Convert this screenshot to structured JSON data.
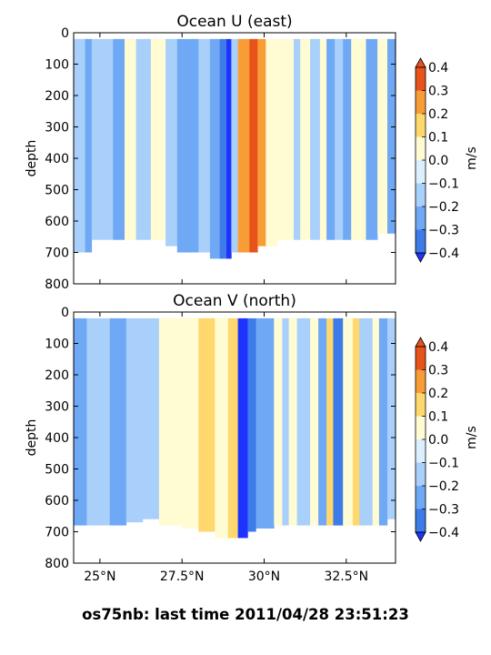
{
  "footer": "os75nb: last time 2011/04/28 23:51:23",
  "colors": {
    "-0.4": "#1f33ff",
    "-0.3": "#3d7be8",
    "-0.2": "#6fa8f5",
    "-0.1": "#a9d0fa",
    "0.0": "#dcefff",
    "0.1": "#fffbd2",
    "0.2": "#fed86c",
    "0.3": "#f89d35",
    "0.4": "#e8531b"
  },
  "chart_data": [
    {
      "type": "heatmap",
      "title": "Ocean U (east)",
      "ylabel": "depth",
      "ylim": [
        800,
        0
      ],
      "y_ticks": [
        "0",
        "100",
        "200",
        "300",
        "400",
        "500",
        "600",
        "700",
        "800"
      ],
      "x_ticks": [
        "25°N",
        "27.5°N",
        "30°N",
        "32.5°N"
      ],
      "xlim": [
        24.2,
        34.0
      ],
      "colorbar_label": "m/s",
      "colorbar_ticks": [
        "0.4",
        "0.3",
        "0.2",
        "0.1",
        "0.0",
        "−0.1",
        "−0.2",
        "−0.3",
        "−0.4"
      ],
      "levels": [
        -0.4,
        -0.3,
        -0.2,
        -0.1,
        0.0,
        0.1,
        0.2,
        0.3,
        0.4
      ],
      "data_top_depth": 20,
      "bands": [
        {
          "x": [
            24.2,
            24.55
          ],
          "v": -0.05,
          "bottom": 700
        },
        {
          "x": [
            24.55,
            24.75
          ],
          "v": -0.12,
          "bottom": 700
        },
        {
          "x": [
            24.75,
            25.4
          ],
          "v": -0.05,
          "bottom": 660
        },
        {
          "x": [
            25.4,
            25.75
          ],
          "v": -0.12,
          "bottom": 660
        },
        {
          "x": [
            25.75,
            26.1
          ],
          "v": 0.05,
          "bottom": 660
        },
        {
          "x": [
            26.1,
            26.55
          ],
          "v": -0.05,
          "bottom": 660
        },
        {
          "x": [
            26.55,
            27.0
          ],
          "v": 0.05,
          "bottom": 660
        },
        {
          "x": [
            27.0,
            27.35
          ],
          "v": -0.05,
          "bottom": 680
        },
        {
          "x": [
            27.35,
            28.0
          ],
          "v": -0.15,
          "bottom": 700
        },
        {
          "x": [
            28.0,
            28.35
          ],
          "v": -0.05,
          "bottom": 700
        },
        {
          "x": [
            28.35,
            28.65
          ],
          "v": -0.15,
          "bottom": 720
        },
        {
          "x": [
            28.65,
            28.85
          ],
          "v": -0.25,
          "bottom": 720
        },
        {
          "x": [
            28.85,
            29.0
          ],
          "v": -0.35,
          "bottom": 720
        },
        {
          "x": [
            29.0,
            29.2
          ],
          "v": -0.05,
          "bottom": 700
        },
        {
          "x": [
            29.2,
            29.55
          ],
          "v": 0.25,
          "bottom": 700
        },
        {
          "x": [
            29.55,
            29.8
          ],
          "v": 0.35,
          "bottom": 700
        },
        {
          "x": [
            29.8,
            30.05
          ],
          "v": 0.25,
          "bottom": 680
        },
        {
          "x": [
            30.05,
            30.4
          ],
          "v": 0.05,
          "bottom": 680
        },
        {
          "x": [
            30.4,
            30.9
          ],
          "v": 0.05,
          "bottom": 660
        },
        {
          "x": [
            30.9,
            31.1
          ],
          "v": -0.05,
          "bottom": 660
        },
        {
          "x": [
            31.1,
            31.4
          ],
          "v": 0.05,
          "bottom": 660
        },
        {
          "x": [
            31.4,
            31.7
          ],
          "v": -0.05,
          "bottom": 660
        },
        {
          "x": [
            31.7,
            31.9
          ],
          "v": 0.05,
          "bottom": 660
        },
        {
          "x": [
            31.9,
            32.15
          ],
          "v": -0.15,
          "bottom": 660
        },
        {
          "x": [
            32.15,
            32.4
          ],
          "v": -0.05,
          "bottom": 660
        },
        {
          "x": [
            32.4,
            32.65
          ],
          "v": -0.15,
          "bottom": 660
        },
        {
          "x": [
            32.65,
            33.1
          ],
          "v": 0.05,
          "bottom": 660
        },
        {
          "x": [
            33.1,
            33.45
          ],
          "v": -0.15,
          "bottom": 660
        },
        {
          "x": [
            33.45,
            33.75
          ],
          "v": 0.05,
          "bottom": 640
        },
        {
          "x": [
            33.75,
            34.0
          ],
          "v": -0.15,
          "bottom": 640
        }
      ]
    },
    {
      "type": "heatmap",
      "title": "Ocean V (north)",
      "ylabel": "depth",
      "ylim": [
        800,
        0
      ],
      "y_ticks": [
        "0",
        "100",
        "200",
        "300",
        "400",
        "500",
        "600",
        "700",
        "800"
      ],
      "x_ticks": [
        "25°N",
        "27.5°N",
        "30°N",
        "32.5°N"
      ],
      "xlim": [
        24.2,
        34.0
      ],
      "colorbar_label": "m/s",
      "colorbar_ticks": [
        "0.4",
        "0.3",
        "0.2",
        "0.1",
        "0.0",
        "−0.1",
        "−0.2",
        "−0.3",
        "−0.4"
      ],
      "levels": [
        -0.4,
        -0.3,
        -0.2,
        -0.1,
        0.0,
        0.1,
        0.2,
        0.3,
        0.4
      ],
      "data_top_depth": 20,
      "bands": [
        {
          "x": [
            24.2,
            24.6
          ],
          "v": -0.15,
          "bottom": 680
        },
        {
          "x": [
            24.6,
            25.3
          ],
          "v": -0.05,
          "bottom": 680
        },
        {
          "x": [
            25.3,
            25.8
          ],
          "v": -0.15,
          "bottom": 680
        },
        {
          "x": [
            25.8,
            26.3
          ],
          "v": -0.05,
          "bottom": 670
        },
        {
          "x": [
            26.3,
            26.8
          ],
          "v": -0.05,
          "bottom": 660
        },
        {
          "x": [
            26.8,
            27.5
          ],
          "v": 0.05,
          "bottom": 680
        },
        {
          "x": [
            27.5,
            28.0
          ],
          "v": 0.05,
          "bottom": 690
        },
        {
          "x": [
            28.0,
            28.5
          ],
          "v": 0.15,
          "bottom": 700
        },
        {
          "x": [
            28.5,
            28.9
          ],
          "v": 0.05,
          "bottom": 720
        },
        {
          "x": [
            28.9,
            29.2
          ],
          "v": 0.15,
          "bottom": 720
        },
        {
          "x": [
            29.2,
            29.5
          ],
          "v": -0.35,
          "bottom": 720
        },
        {
          "x": [
            29.5,
            29.75
          ],
          "v": -0.25,
          "bottom": 700
        },
        {
          "x": [
            29.75,
            30.3
          ],
          "v": -0.15,
          "bottom": 690
        },
        {
          "x": [
            30.3,
            30.55
          ],
          "v": 0.05,
          "bottom": 680
        },
        {
          "x": [
            30.55,
            30.75
          ],
          "v": -0.05,
          "bottom": 680
        },
        {
          "x": [
            30.75,
            31.0
          ],
          "v": 0.05,
          "bottom": 680
        },
        {
          "x": [
            31.0,
            31.4
          ],
          "v": -0.05,
          "bottom": 680
        },
        {
          "x": [
            31.4,
            31.65
          ],
          "v": 0.05,
          "bottom": 680
        },
        {
          "x": [
            31.65,
            31.9
          ],
          "v": -0.15,
          "bottom": 680
        },
        {
          "x": [
            31.9,
            32.1
          ],
          "v": 0.15,
          "bottom": 680
        },
        {
          "x": [
            32.1,
            32.4
          ],
          "v": -0.25,
          "bottom": 680
        },
        {
          "x": [
            32.4,
            32.7
          ],
          "v": 0.05,
          "bottom": 680
        },
        {
          "x": [
            32.7,
            32.9
          ],
          "v": 0.15,
          "bottom": 680
        },
        {
          "x": [
            32.9,
            33.3
          ],
          "v": -0.05,
          "bottom": 680
        },
        {
          "x": [
            33.3,
            33.5
          ],
          "v": 0.05,
          "bottom": 680
        },
        {
          "x": [
            33.5,
            33.75
          ],
          "v": -0.15,
          "bottom": 680
        },
        {
          "x": [
            33.75,
            34.0
          ],
          "v": -0.05,
          "bottom": 660
        }
      ]
    }
  ]
}
